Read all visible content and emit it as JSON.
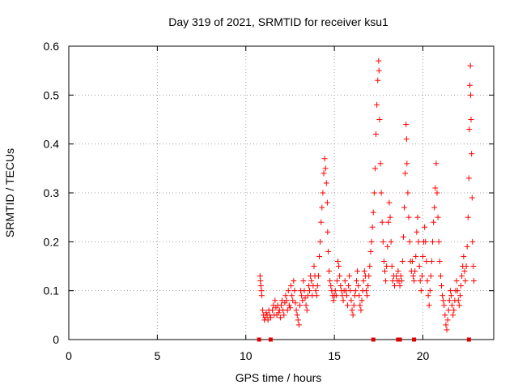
{
  "chart_data": {
    "type": "scatter",
    "title": "Day 319 of 2021, SRMTID for receiver ksu1",
    "xlabel": "GPS time / hours",
    "ylabel": "SRMTID / TECUs",
    "xlim": [
      0,
      24
    ],
    "ylim": [
      0,
      0.6
    ],
    "xticks": [
      0,
      5,
      10,
      15,
      20
    ],
    "yticks": [
      0,
      0.1,
      0.2,
      0.3,
      0.4,
      0.5,
      0.6
    ],
    "xtick_labels": [
      "0",
      "5",
      "10",
      "15",
      "20"
    ],
    "ytick_labels": [
      "0",
      "0.1",
      "0.2",
      "0.3",
      "0.4",
      "0.5",
      "0.6"
    ],
    "grid": true,
    "marker": "+",
    "color": "#ff0000",
    "gap_markers_x": [
      10.75,
      11.4,
      17.2,
      18.6,
      18.7,
      19.5,
      22.6
    ],
    "series": [
      {
        "name": "SRMTID",
        "points": [
          [
            10.8,
            0.13
          ],
          [
            10.82,
            0.12
          ],
          [
            10.85,
            0.11
          ],
          [
            10.88,
            0.1
          ],
          [
            10.9,
            0.09
          ],
          [
            10.95,
            0.06
          ],
          [
            11.0,
            0.05
          ],
          [
            11.05,
            0.04
          ],
          [
            11.1,
            0.045
          ],
          [
            11.15,
            0.055
          ],
          [
            11.2,
            0.05
          ],
          [
            11.25,
            0.04
          ],
          [
            11.3,
            0.06
          ],
          [
            11.35,
            0.05
          ],
          [
            11.4,
            0.045
          ],
          [
            11.5,
            0.06
          ],
          [
            11.55,
            0.07
          ],
          [
            11.6,
            0.05
          ],
          [
            11.65,
            0.08
          ],
          [
            11.7,
            0.065
          ],
          [
            11.75,
            0.05
          ],
          [
            11.8,
            0.07
          ],
          [
            11.85,
            0.055
          ],
          [
            11.9,
            0.06
          ],
          [
            11.95,
            0.045
          ],
          [
            12.0,
            0.07
          ],
          [
            12.05,
            0.08
          ],
          [
            12.1,
            0.06
          ],
          [
            12.15,
            0.05
          ],
          [
            12.2,
            0.075
          ],
          [
            12.25,
            0.09
          ],
          [
            12.3,
            0.08
          ],
          [
            12.35,
            0.06
          ],
          [
            12.4,
            0.1
          ],
          [
            12.45,
            0.07
          ],
          [
            12.5,
            0.065
          ],
          [
            12.55,
            0.11
          ],
          [
            12.6,
            0.09
          ],
          [
            12.65,
            0.08
          ],
          [
            12.7,
            0.12
          ],
          [
            12.75,
            0.1
          ],
          [
            12.8,
            0.075
          ],
          [
            12.85,
            0.06
          ],
          [
            12.9,
            0.05
          ],
          [
            12.95,
            0.04
          ],
          [
            13.0,
            0.03
          ],
          [
            13.05,
            0.07
          ],
          [
            13.1,
            0.1
          ],
          [
            13.15,
            0.09
          ],
          [
            13.2,
            0.08
          ],
          [
            13.25,
            0.12
          ],
          [
            13.3,
            0.1
          ],
          [
            13.35,
            0.085
          ],
          [
            13.4,
            0.07
          ],
          [
            13.45,
            0.06
          ],
          [
            13.5,
            0.09
          ],
          [
            13.55,
            0.11
          ],
          [
            13.6,
            0.1
          ],
          [
            13.65,
            0.13
          ],
          [
            13.7,
            0.12
          ],
          [
            13.75,
            0.09
          ],
          [
            13.8,
            0.11
          ],
          [
            13.85,
            0.15
          ],
          [
            13.9,
            0.13
          ],
          [
            13.95,
            0.1
          ],
          [
            14.0,
            0.09
          ],
          [
            14.05,
            0.11
          ],
          [
            14.1,
            0.13
          ],
          [
            14.15,
            0.17
          ],
          [
            14.2,
            0.2
          ],
          [
            14.25,
            0.24
          ],
          [
            14.3,
            0.27
          ],
          [
            14.35,
            0.3
          ],
          [
            14.4,
            0.34
          ],
          [
            14.45,
            0.37
          ],
          [
            14.5,
            0.35
          ],
          [
            14.55,
            0.32
          ],
          [
            14.6,
            0.28
          ],
          [
            14.62,
            0.22
          ],
          [
            14.65,
            0.18
          ],
          [
            14.7,
            0.14
          ],
          [
            14.75,
            0.12
          ],
          [
            14.8,
            0.11
          ],
          [
            14.85,
            0.1
          ],
          [
            14.9,
            0.09
          ],
          [
            14.95,
            0.08
          ],
          [
            15.0,
            0.09
          ],
          [
            15.05,
            0.1
          ],
          [
            15.1,
            0.09
          ],
          [
            15.15,
            0.12
          ],
          [
            15.2,
            0.16
          ],
          [
            15.25,
            0.15
          ],
          [
            15.3,
            0.13
          ],
          [
            15.35,
            0.11
          ],
          [
            15.4,
            0.1
          ],
          [
            15.45,
            0.09
          ],
          [
            15.5,
            0.08
          ],
          [
            15.55,
            0.1
          ],
          [
            15.6,
            0.12
          ],
          [
            15.65,
            0.1
          ],
          [
            15.7,
            0.09
          ],
          [
            15.75,
            0.07
          ],
          [
            15.8,
            0.11
          ],
          [
            15.85,
            0.13
          ],
          [
            15.9,
            0.1
          ],
          [
            15.95,
            0.08
          ],
          [
            16.0,
            0.06
          ],
          [
            16.05,
            0.05
          ],
          [
            16.1,
            0.07
          ],
          [
            16.15,
            0.09
          ],
          [
            16.2,
            0.1
          ],
          [
            16.25,
            0.12
          ],
          [
            16.3,
            0.14
          ],
          [
            16.35,
            0.11
          ],
          [
            16.4,
            0.09
          ],
          [
            16.45,
            0.07
          ],
          [
            16.5,
            0.06
          ],
          [
            16.55,
            0.08
          ],
          [
            16.6,
            0.1
          ],
          [
            16.65,
            0.12
          ],
          [
            16.7,
            0.14
          ],
          [
            16.75,
            0.13
          ],
          [
            16.8,
            0.1
          ],
          [
            16.85,
            0.09
          ],
          [
            16.9,
            0.11
          ],
          [
            16.95,
            0.13
          ],
          [
            17.0,
            0.15
          ],
          [
            17.05,
            0.18
          ],
          [
            17.1,
            0.2
          ],
          [
            17.15,
            0.23
          ],
          [
            17.2,
            0.26
          ],
          [
            17.25,
            0.3
          ],
          [
            17.3,
            0.35
          ],
          [
            17.35,
            0.42
          ],
          [
            17.4,
            0.48
          ],
          [
            17.45,
            0.53
          ],
          [
            17.5,
            0.57
          ],
          [
            17.52,
            0.55
          ],
          [
            17.55,
            0.45
          ],
          [
            17.6,
            0.36
          ],
          [
            17.65,
            0.3
          ],
          [
            17.7,
            0.24
          ],
          [
            17.75,
            0.2
          ],
          [
            17.8,
            0.16
          ],
          [
            17.85,
            0.14
          ],
          [
            17.9,
            0.12
          ],
          [
            17.95,
            0.15
          ],
          [
            18.0,
            0.19
          ],
          [
            18.05,
            0.24
          ],
          [
            18.1,
            0.28
          ],
          [
            18.15,
            0.25
          ],
          [
            18.2,
            0.2
          ],
          [
            18.25,
            0.15
          ],
          [
            18.3,
            0.12
          ],
          [
            18.35,
            0.13
          ],
          [
            18.4,
            0.11
          ],
          [
            18.5,
            0.13
          ],
          [
            18.55,
            0.12
          ],
          [
            18.6,
            0.14
          ],
          [
            18.65,
            0.12
          ],
          [
            18.7,
            0.11
          ],
          [
            18.75,
            0.13
          ],
          [
            18.8,
            0.12
          ],
          [
            18.85,
            0.16
          ],
          [
            18.9,
            0.21
          ],
          [
            18.95,
            0.27
          ],
          [
            19.0,
            0.34
          ],
          [
            19.05,
            0.44
          ],
          [
            19.08,
            0.41
          ],
          [
            19.1,
            0.36
          ],
          [
            19.15,
            0.3
          ],
          [
            19.2,
            0.25
          ],
          [
            19.25,
            0.2
          ],
          [
            19.3,
            0.16
          ],
          [
            19.35,
            0.14
          ],
          [
            19.4,
            0.16
          ],
          [
            19.45,
            0.13
          ],
          [
            19.5,
            0.12
          ],
          [
            19.55,
            0.14
          ],
          [
            19.6,
            0.17
          ],
          [
            19.65,
            0.22
          ],
          [
            19.7,
            0.25
          ],
          [
            19.75,
            0.2
          ],
          [
            19.8,
            0.15
          ],
          [
            19.85,
            0.12
          ],
          [
            19.9,
            0.1
          ],
          [
            19.95,
            0.13
          ],
          [
            20.0,
            0.17
          ],
          [
            20.05,
            0.2
          ],
          [
            20.1,
            0.23
          ],
          [
            20.15,
            0.2
          ],
          [
            20.2,
            0.16
          ],
          [
            20.25,
            0.12
          ],
          [
            20.3,
            0.09
          ],
          [
            20.35,
            0.07
          ],
          [
            20.4,
            0.1
          ],
          [
            20.45,
            0.13
          ],
          [
            20.5,
            0.16
          ],
          [
            20.55,
            0.2
          ],
          [
            20.6,
            0.24
          ],
          [
            20.65,
            0.27
          ],
          [
            20.7,
            0.31
          ],
          [
            20.75,
            0.36
          ],
          [
            20.8,
            0.3
          ],
          [
            20.85,
            0.25
          ],
          [
            20.9,
            0.2
          ],
          [
            20.95,
            0.16
          ],
          [
            21.0,
            0.13
          ],
          [
            21.05,
            0.11
          ],
          [
            21.1,
            0.09
          ],
          [
            21.15,
            0.08
          ],
          [
            21.2,
            0.07
          ],
          [
            21.25,
            0.05
          ],
          [
            21.3,
            0.03
          ],
          [
            21.35,
            0.02
          ],
          [
            21.4,
            0.04
          ],
          [
            21.45,
            0.06
          ],
          [
            21.5,
            0.08
          ],
          [
            21.55,
            0.1
          ],
          [
            21.6,
            0.09
          ],
          [
            21.65,
            0.07
          ],
          [
            21.7,
            0.05
          ],
          [
            21.75,
            0.06
          ],
          [
            21.8,
            0.08
          ],
          [
            21.85,
            0.1
          ],
          [
            21.9,
            0.12
          ],
          [
            21.95,
            0.1
          ],
          [
            22.0,
            0.08
          ],
          [
            22.05,
            0.07
          ],
          [
            22.1,
            0.09
          ],
          [
            22.15,
            0.11
          ],
          [
            22.2,
            0.13
          ],
          [
            22.25,
            0.15
          ],
          [
            22.3,
            0.17
          ],
          [
            22.35,
            0.14
          ],
          [
            22.4,
            0.12
          ],
          [
            22.45,
            0.15
          ],
          [
            22.5,
            0.19
          ],
          [
            22.55,
            0.25
          ],
          [
            22.6,
            0.33
          ],
          [
            22.62,
            0.43
          ],
          [
            22.65,
            0.52
          ],
          [
            22.68,
            0.56
          ],
          [
            22.7,
            0.5
          ],
          [
            22.72,
            0.45
          ],
          [
            22.75,
            0.38
          ],
          [
            22.78,
            0.29
          ],
          [
            22.8,
            0.2
          ],
          [
            22.85,
            0.15
          ],
          [
            22.88,
            0.12
          ]
        ]
      }
    ]
  }
}
